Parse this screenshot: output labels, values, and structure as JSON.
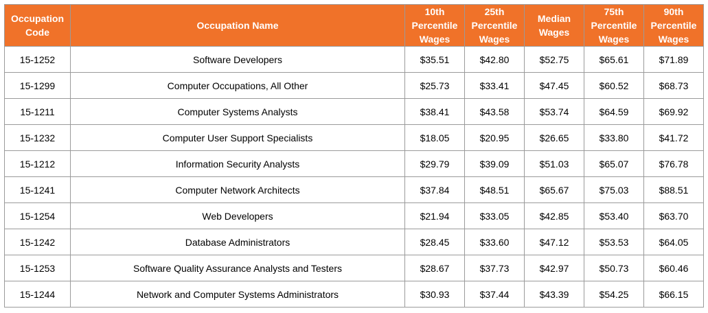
{
  "table": {
    "colors": {
      "header_bg": "#f07229",
      "header_text": "#ffffff",
      "border": "#9a9a9a"
    },
    "headers": [
      "Occupation\nCode",
      "Occupation Name",
      "10th\nPercentile\nWages",
      "25th\nPercentile\nWages",
      "Median\nWages",
      "75th\nPercentile\nWages",
      "90th\nPercentile\nWages"
    ],
    "rows": [
      [
        "15-1252",
        "Software Developers",
        "$35.51",
        "$42.80",
        "$52.75",
        "$65.61",
        "$71.89"
      ],
      [
        "15-1299",
        "Computer Occupations, All Other",
        "$25.73",
        "$33.41",
        "$47.45",
        "$60.52",
        "$68.73"
      ],
      [
        "15-1211",
        "Computer Systems Analysts",
        "$38.41",
        "$43.58",
        "$53.74",
        "$64.59",
        "$69.92"
      ],
      [
        "15-1232",
        "Computer User Support Specialists",
        "$18.05",
        "$20.95",
        "$26.65",
        "$33.80",
        "$41.72"
      ],
      [
        "15-1212",
        "Information Security Analysts",
        "$29.79",
        "$39.09",
        "$51.03",
        "$65.07",
        "$76.78"
      ],
      [
        "15-1241",
        "Computer Network Architects",
        "$37.84",
        "$48.51",
        "$65.67",
        "$75.03",
        "$88.51"
      ],
      [
        "15-1254",
        "Web Developers",
        "$21.94",
        "$33.05",
        "$42.85",
        "$53.40",
        "$63.70"
      ],
      [
        "15-1242",
        "Database Administrators",
        "$28.45",
        "$33.60",
        "$47.12",
        "$53.53",
        "$64.05"
      ],
      [
        "15-1253",
        "Software Quality Assurance Analysts and Testers",
        "$28.67",
        "$37.73",
        "$42.97",
        "$50.73",
        "$60.46"
      ],
      [
        "15-1244",
        "Network and Computer Systems Administrators",
        "$30.93",
        "$37.44",
        "$43.39",
        "$54.25",
        "$66.15"
      ]
    ]
  }
}
